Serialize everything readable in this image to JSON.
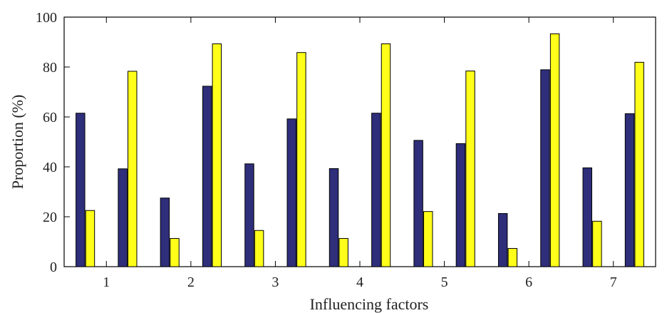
{
  "chart_data": {
    "type": "bar",
    "title": "",
    "xlabel": "Influencing factors",
    "ylabel": "Proportion (%)",
    "ylim": [
      0,
      100
    ],
    "yticks": [
      0,
      20,
      40,
      60,
      80,
      100
    ],
    "xtick_labels": [
      "1",
      "2",
      "3",
      "4",
      "5",
      "6",
      "7"
    ],
    "grid": false,
    "legend": "none",
    "bar_groups": 14,
    "series": [
      {
        "color": "#2e2e7a",
        "values": [
          61.5,
          39.2,
          27.5,
          72.3,
          41.2,
          59.2,
          39.3,
          61.5,
          50.6,
          49.3,
          21.3,
          78.9,
          39.6,
          61.3
        ]
      },
      {
        "color": "#ffff1a",
        "values": [
          22.5,
          78.3,
          11.3,
          89.3,
          14.5,
          85.8,
          11.3,
          89.3,
          22.1,
          78.4,
          7.3,
          93.3,
          18.2,
          81.9
        ]
      }
    ]
  }
}
